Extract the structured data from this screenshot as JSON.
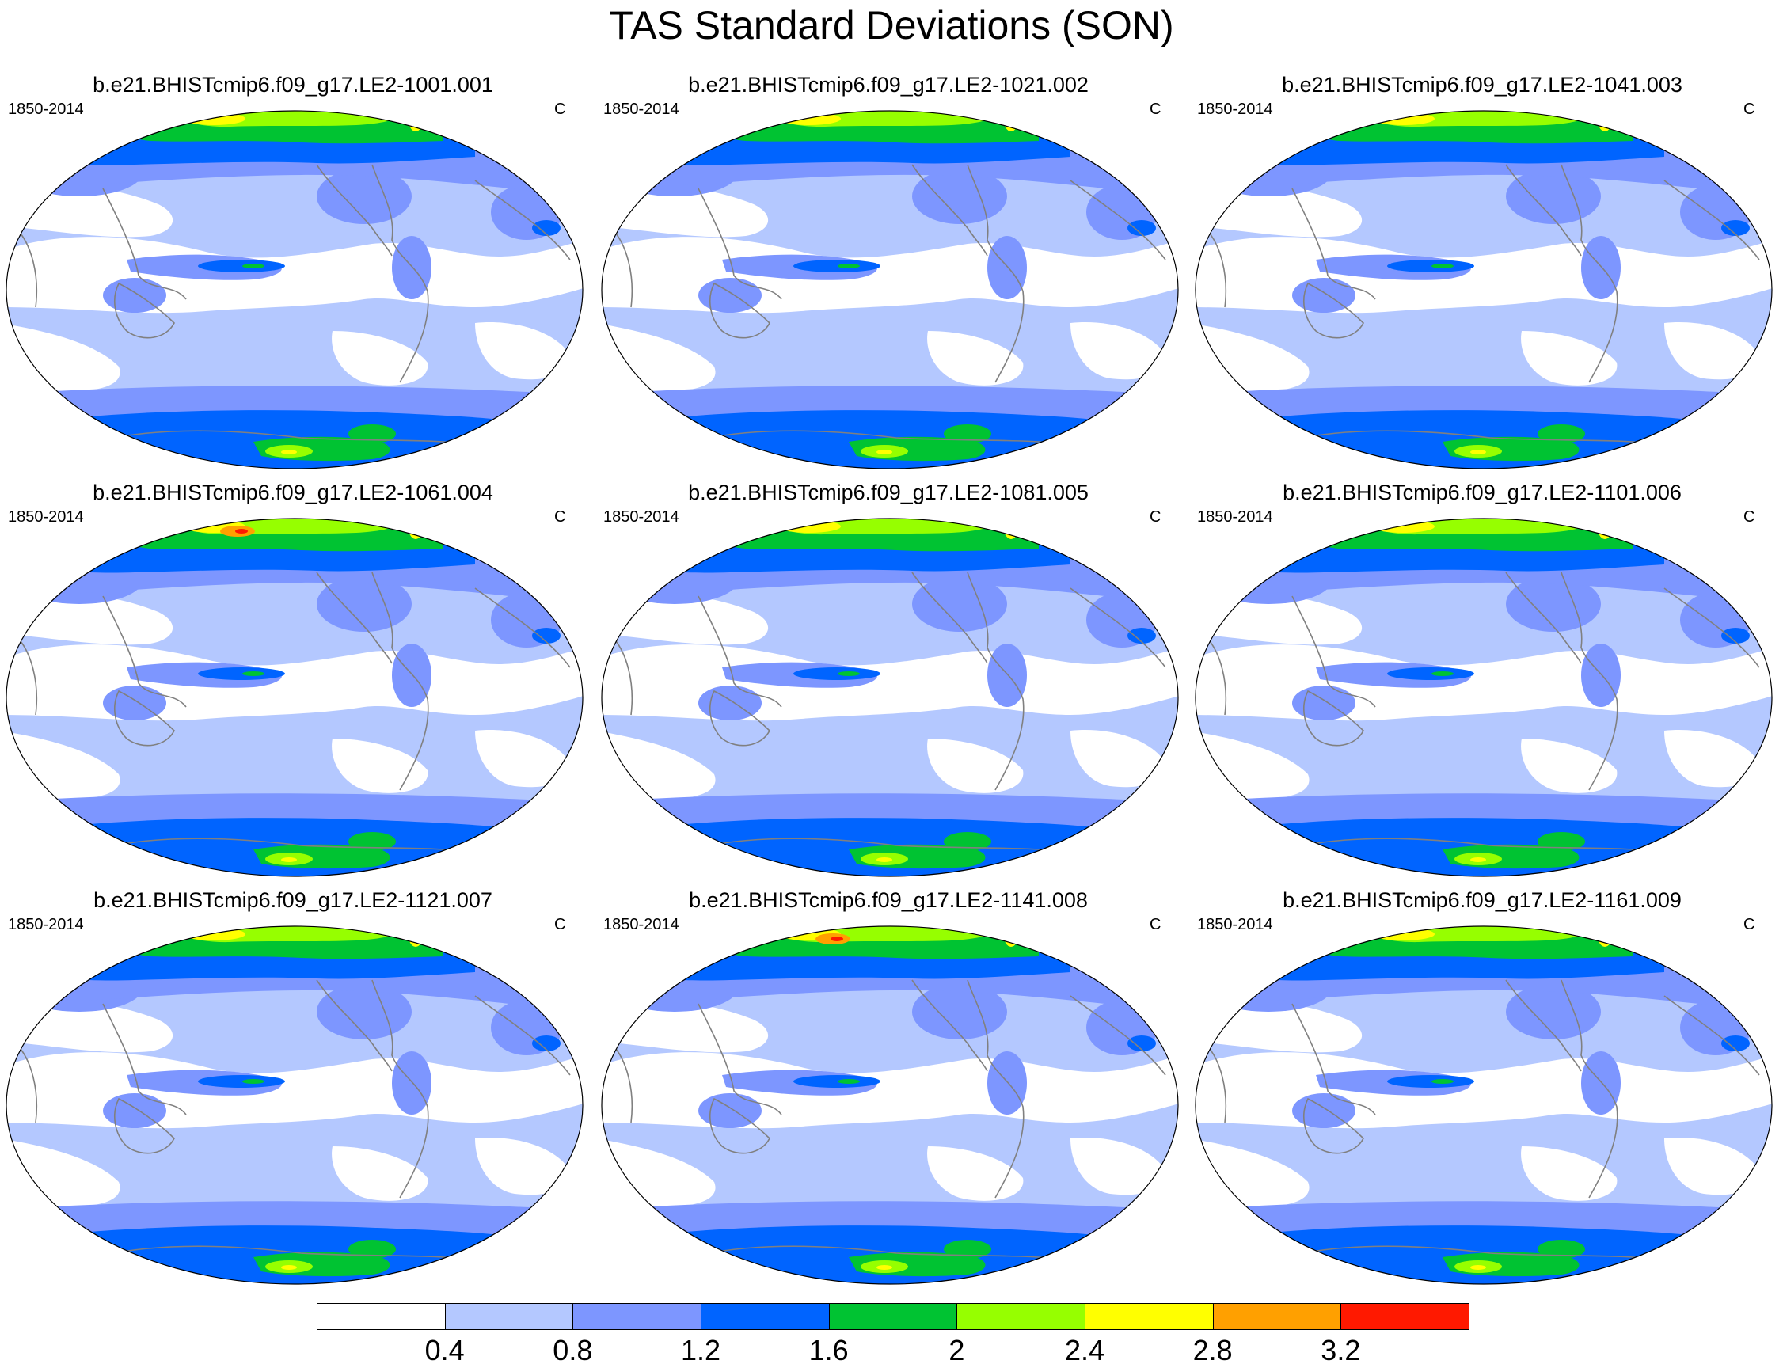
{
  "figure": {
    "title": "TAS Standard Deviations (SON)",
    "panel_left_label": "1850-2014",
    "panel_right_label": "C",
    "panels": [
      {
        "title": "b.e21.BHISTcmip6.f09_g17.LE2-1001.001"
      },
      {
        "title": "b.e21.BHISTcmip6.f09_g17.LE2-1021.002"
      },
      {
        "title": "b.e21.BHISTcmip6.f09_g17.LE2-1041.003"
      },
      {
        "title": "b.e21.BHISTcmip6.f09_g17.LE2-1061.004"
      },
      {
        "title": "b.e21.BHISTcmip6.f09_g17.LE2-1081.005"
      },
      {
        "title": "b.e21.BHISTcmip6.f09_g17.LE2-1101.006"
      },
      {
        "title": "b.e21.BHISTcmip6.f09_g17.LE2-1121.007"
      },
      {
        "title": "b.e21.BHISTcmip6.f09_g17.LE2-1141.008"
      },
      {
        "title": "b.e21.BHISTcmip6.f09_g17.LE2-1161.009"
      }
    ]
  },
  "colorbar": {
    "levels": [
      "0.4",
      "0.8",
      "1.2",
      "1.6",
      "2",
      "2.4",
      "2.8",
      "3.2"
    ],
    "colors": [
      "#ffffff",
      "#b4c8ff",
      "#7d96ff",
      "#0064ff",
      "#00c332",
      "#96ff00",
      "#ffff00",
      "#ffa000",
      "#ff1900"
    ]
  },
  "map_colors": {
    "ocean_bg": "#b4c8ff",
    "white_band": "#ffffff",
    "mid_blue": "#7d96ff",
    "blue": "#0064ff",
    "green": "#00c332",
    "yellow_green": "#96ff00",
    "yellow": "#ffff00",
    "orange": "#ffa000",
    "red": "#ff1900",
    "coastline": "#808080"
  }
}
